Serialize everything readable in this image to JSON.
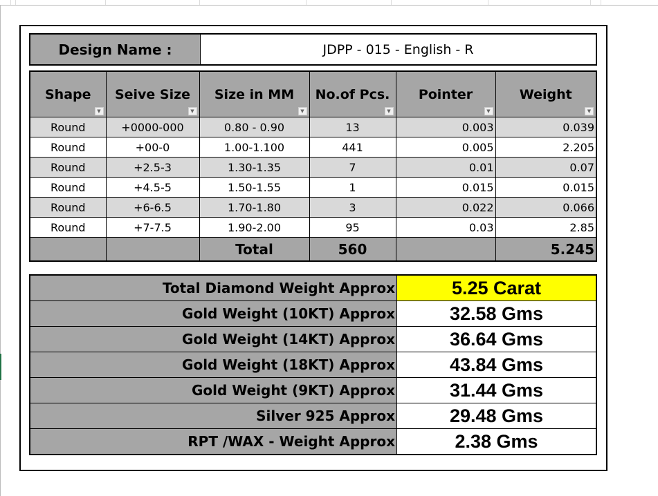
{
  "design": {
    "label": "Design Name :",
    "value": "JDPP - 015 - English - R"
  },
  "table": {
    "headers": [
      "Shape",
      "Seive Size",
      "Size in MM",
      "No.of Pcs.",
      "Pointer",
      "Weight"
    ],
    "rows": [
      [
        "Round",
        "+0000-000",
        "0.80 - 0.90",
        "13",
        "0.003",
        "0.039"
      ],
      [
        "Round",
        "+00-0",
        "1.00-1.100",
        "441",
        "0.005",
        "2.205"
      ],
      [
        "Round",
        "+2.5-3",
        "1.30-1.35",
        "7",
        "0.01",
        "0.07"
      ],
      [
        "Round",
        "+4.5-5",
        "1.50-1.55",
        "1",
        "0.015",
        "0.015"
      ],
      [
        "Round",
        "+6-6.5",
        "1.70-1.80",
        "3",
        "0.022",
        "0.066"
      ],
      [
        "Round",
        "+7-7.5",
        "1.90-2.00",
        "95",
        "0.03",
        "2.85"
      ]
    ],
    "total": {
      "label": "Total",
      "pcs": "560",
      "weight": "5.245"
    }
  },
  "summary": [
    {
      "label": "Total Diamond Weight Approx",
      "value": "5.25 Carat"
    },
    {
      "label": "Gold Weight (10KT) Approx",
      "value": "32.58 Gms"
    },
    {
      "label": "Gold Weight (14KT) Approx",
      "value": "36.64 Gms"
    },
    {
      "label": "Gold Weight (18KT) Approx",
      "value": "43.84 Gms"
    },
    {
      "label": "Gold Weight (9KT) Approx",
      "value": "31.44 Gms"
    },
    {
      "label": "Silver 925 Approx",
      "value": "29.48 Gms"
    },
    {
      "label": "RPT /WAX - Weight Approx",
      "value": "2.38 Gms"
    }
  ],
  "colors": {
    "header_gray": "#a6a6a6",
    "row_gray": "#d9d9d9",
    "highlight": "#ffff00"
  }
}
